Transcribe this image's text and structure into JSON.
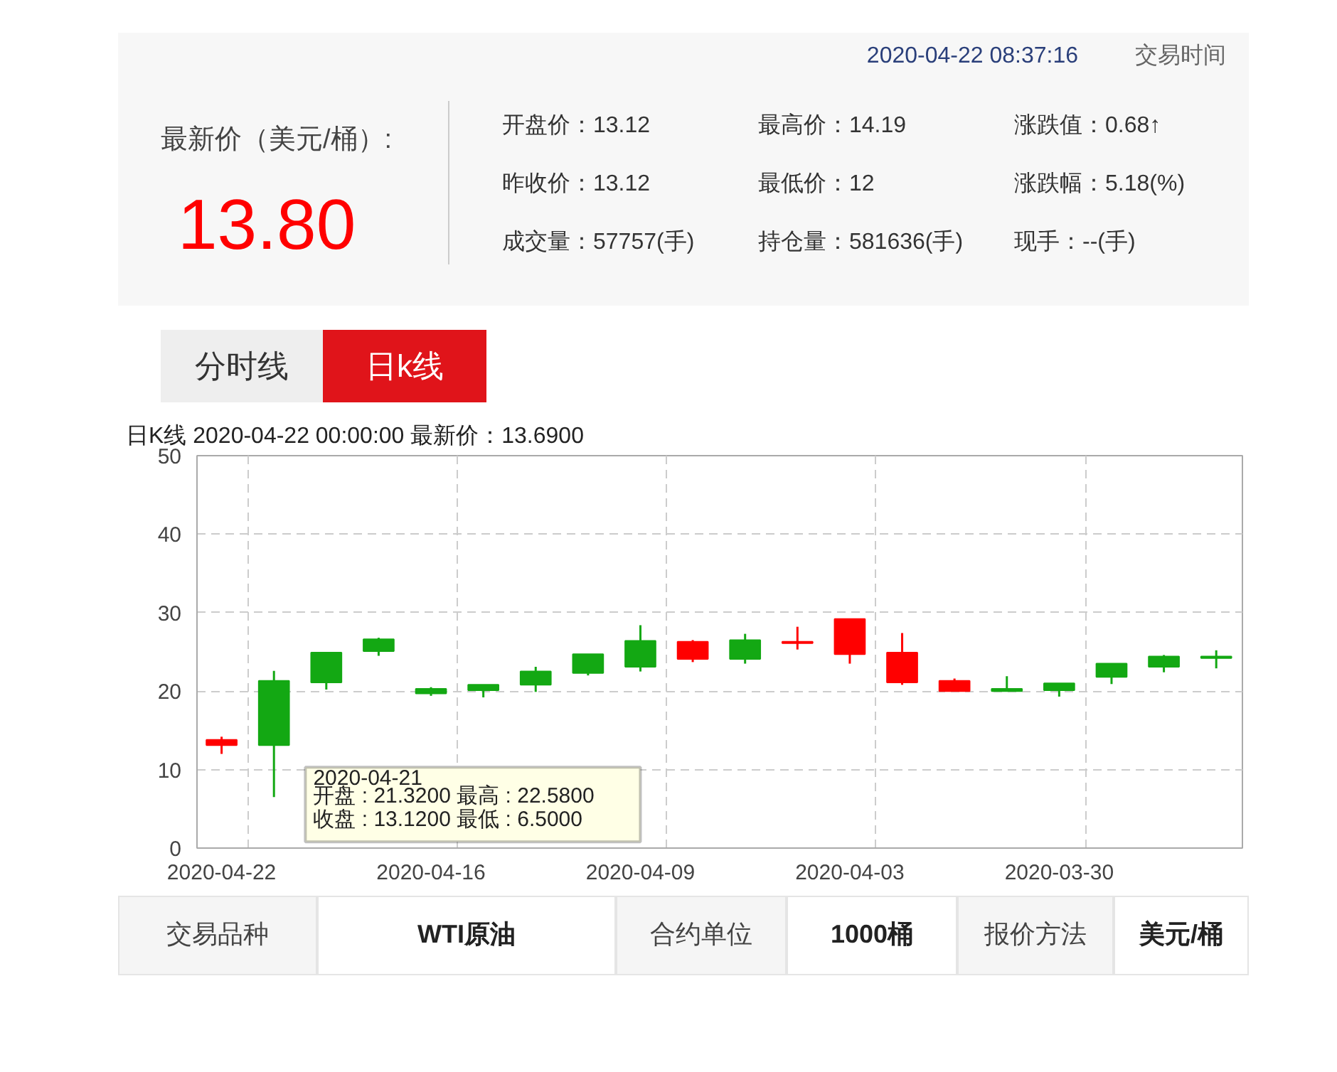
{
  "chart_data": {
    "type": "candlestick",
    "title": "日K线  2020-04-22 00:00:00  最新价：13.6900",
    "categories": [
      "2020-04-22",
      null,
      null,
      null,
      "2020-04-16",
      null,
      null,
      null,
      "2020-04-09",
      null,
      null,
      null,
      "2020-04-03",
      null,
      null,
      null,
      "2020-03-30",
      null,
      null,
      null
    ],
    "ohlc": [
      [
        13.12,
        14.19,
        12,
        13.8
      ],
      [
        21.32,
        22.58,
        6.5,
        13.12
      ],
      [
        24.9,
        24.9,
        20.2,
        21.1
      ],
      [
        26.6,
        26.8,
        24.5,
        25.1
      ],
      [
        20.3,
        20.5,
        19.4,
        19.7
      ],
      [
        20.8,
        20.8,
        19.2,
        20.1
      ],
      [
        22.5,
        23.1,
        19.9,
        20.8
      ],
      [
        24.7,
        24.7,
        22.0,
        22.3
      ],
      [
        26.4,
        28.4,
        22.5,
        23.1
      ],
      [
        24.1,
        26.5,
        23.7,
        26.3
      ],
      [
        26.5,
        27.3,
        23.5,
        24.1
      ],
      [
        26.1,
        28.2,
        25.3,
        26.3
      ],
      [
        24.7,
        29.2,
        23.5,
        29.2
      ],
      [
        21.1,
        27.4,
        20.8,
        24.9
      ],
      [
        20.0,
        21.6,
        20.0,
        21.3
      ],
      [
        20.3,
        21.9,
        20.0,
        20.0
      ],
      [
        21.0,
        21.0,
        19.3,
        20.1
      ],
      [
        23.5,
        23.5,
        20.9,
        21.8
      ],
      [
        24.4,
        24.6,
        22.4,
        23.1
      ],
      [
        24.4,
        25.2,
        22.9,
        24.2
      ]
    ],
    "colors": [
      "#ff0000",
      "#13a813",
      "#13a813",
      "#13a813",
      "#13a813",
      "#13a813",
      "#13a813",
      "#13a813",
      "#13a813",
      "#ff0000",
      "#13a813",
      "#ff0000",
      "#ff0000",
      "#ff0000",
      "#ff0000",
      "#13a813",
      "#13a813",
      "#13a813",
      "#13a813",
      "#13a813"
    ],
    "ylim": [
      0,
      50
    ],
    "yticks": [
      0,
      10,
      20,
      30,
      40,
      50
    ],
    "grid": true,
    "annotations": [
      "2020-04-22 08:37:16",
      "交易时间",
      "最新价（美元/桶）:",
      "13.80",
      "开盘价：13.12",
      "最高价：14.19",
      "涨跌值：0.68↑",
      "昨收价：13.12",
      "最低价：12",
      "涨跌幅：5.18(%)",
      "成交量：57757(手)",
      "持仓量：581636(手)",
      "现手：--(手)",
      "分时线",
      "日k线",
      "2020-04-21",
      "开盘 : 21.3200 最高 : 22.5800",
      "收盘 : 13.1200 最低 : 6.5000",
      "交易品种",
      "WTI原油",
      "合约单位",
      "1000桶",
      "报价方法",
      "美元/桶"
    ]
  }
}
